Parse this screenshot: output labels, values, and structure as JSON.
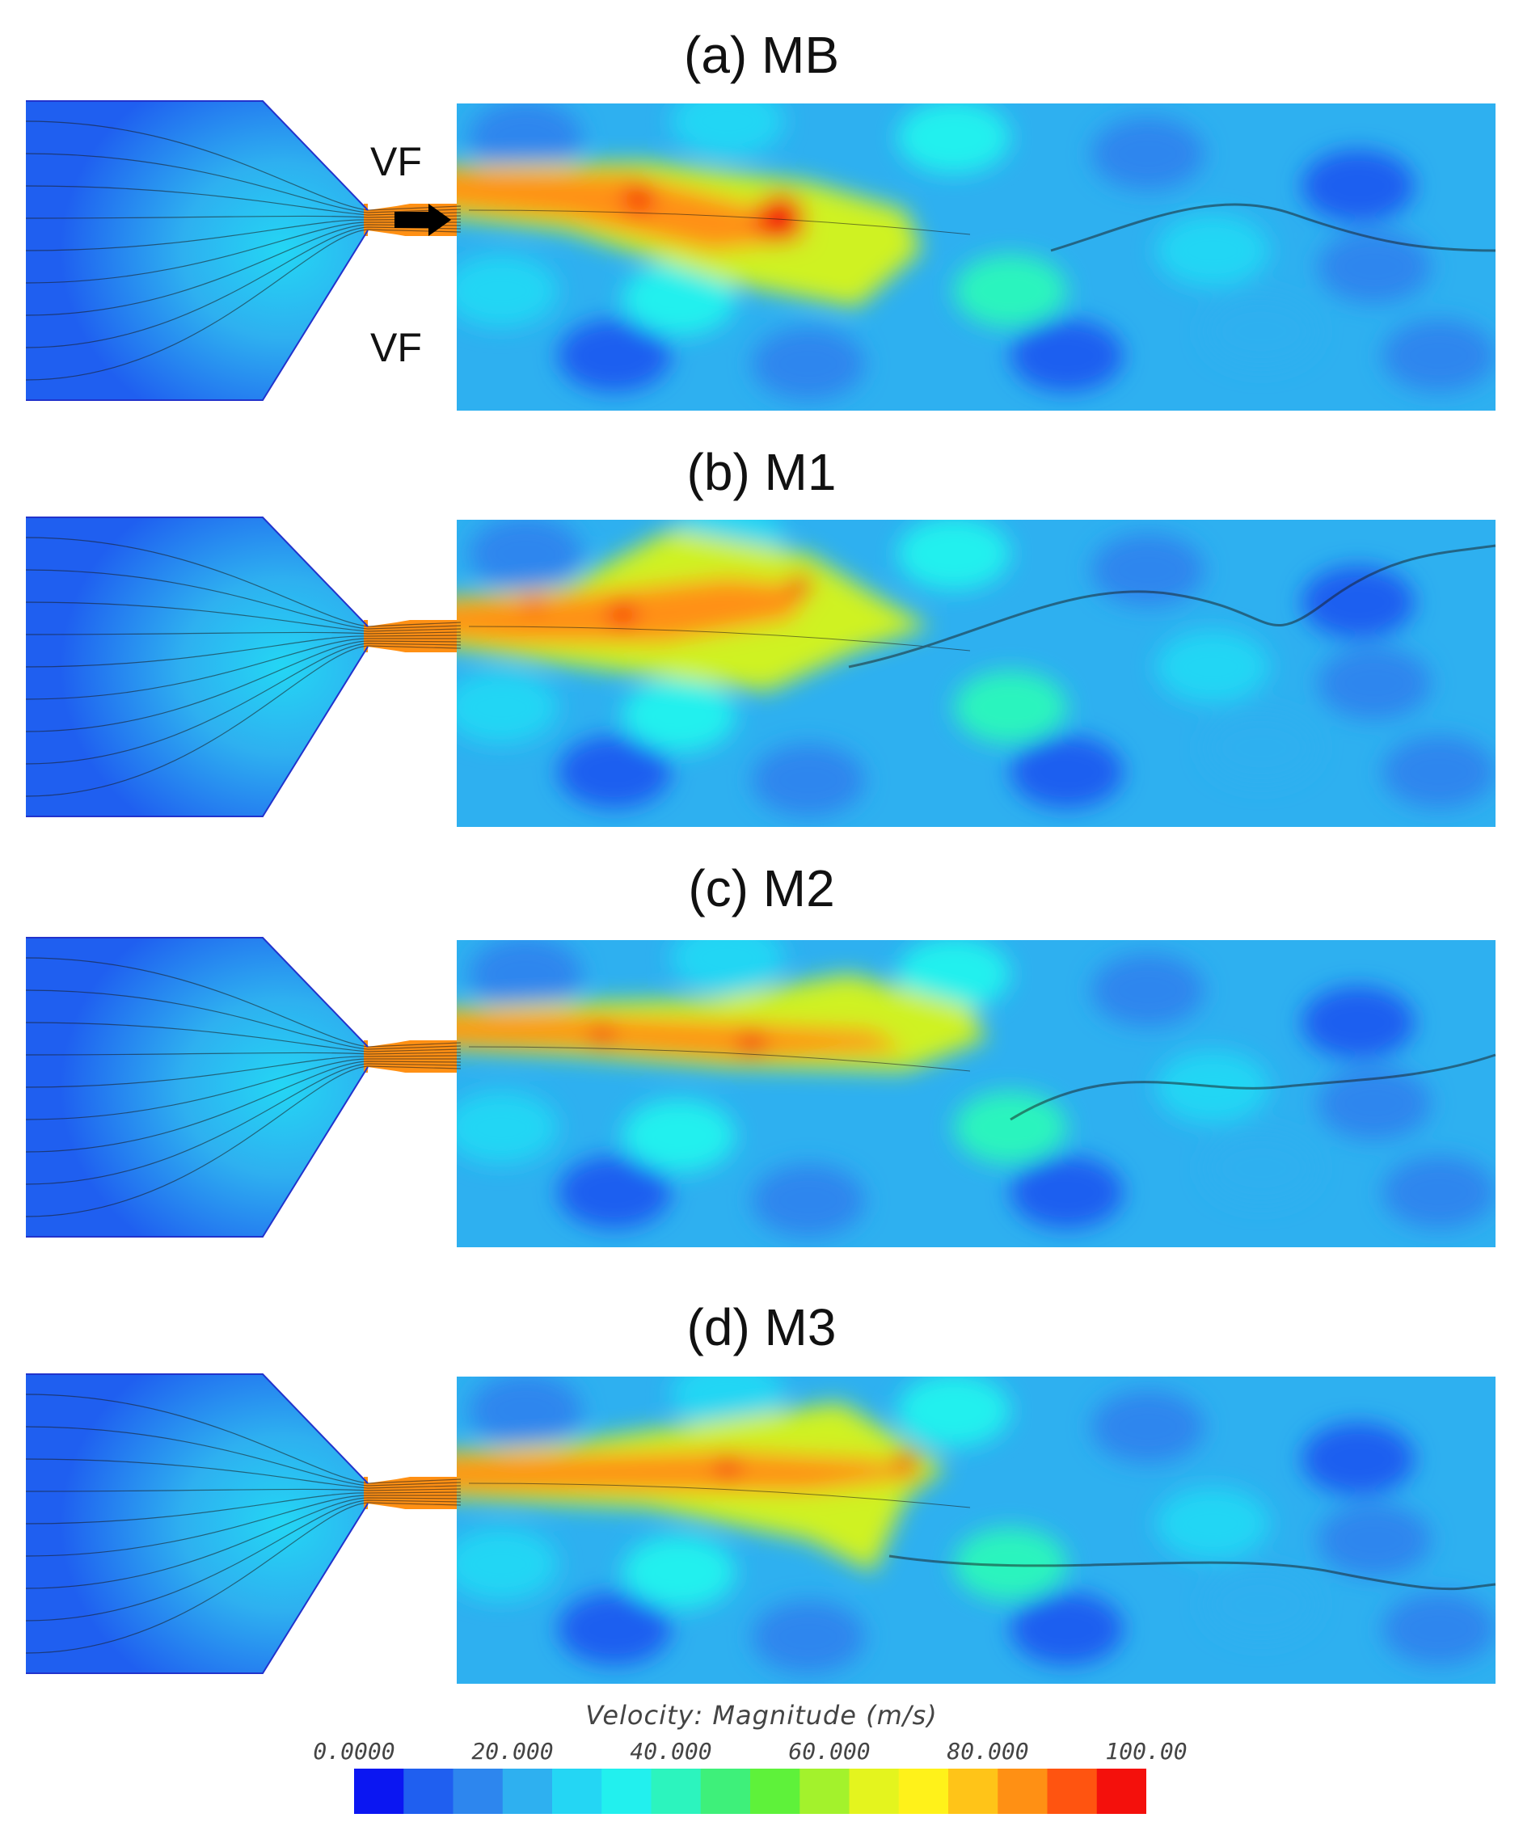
{
  "panels": [
    {
      "title": "(a) MB",
      "labels": [
        "VF",
        "VF"
      ],
      "has_arrow": true
    },
    {
      "title": "(b) M1",
      "labels": [],
      "has_arrow": false
    },
    {
      "title": "(c) M2",
      "labels": [],
      "has_arrow": false
    },
    {
      "title": "(d) M3",
      "labels": [],
      "has_arrow": false
    }
  ],
  "legend": {
    "title": "Velocity: Magnitude (m/s)",
    "ticks": [
      "0.0000",
      "20.000",
      "40.000",
      "60.000",
      "80.000",
      "100.00"
    ],
    "range": [
      0,
      100
    ],
    "colors": [
      "#0b16f2",
      "#1f5ff0",
      "#2d86ee",
      "#2eb0f0",
      "#24d6f4",
      "#22f0ee",
      "#2cf4be",
      "#3ef07a",
      "#5ef23a",
      "#a3f22c",
      "#e4f41e",
      "#fff21a",
      "#ffc418",
      "#ff9014",
      "#ff5410",
      "#f4100c"
    ]
  }
}
